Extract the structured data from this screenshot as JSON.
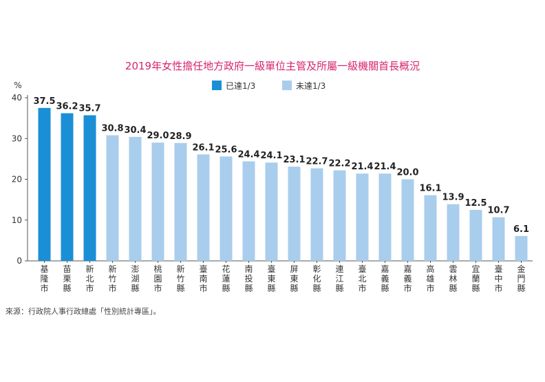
{
  "chart_data": {
    "type": "bar",
    "title": "2019年女性擔任地方政府一級單位主管及所屬一級機關首長概況",
    "ylabel": "%",
    "ylim": [
      0,
      40
    ],
    "yticks": [
      0,
      10,
      20,
      30,
      40
    ],
    "grid": false,
    "legend_position": "top-center",
    "categories": [
      "基隆市",
      "苗栗縣",
      "新北市",
      "新竹市",
      "澎湖縣",
      "桃園市",
      "新竹縣",
      "臺南市",
      "花蓮縣",
      "南投縣",
      "臺東縣",
      "屏東縣",
      "彰化縣",
      "連江縣",
      "臺北市",
      "嘉義縣",
      "嘉義市",
      "高雄市",
      "雲林縣",
      "宜蘭縣",
      "臺中市",
      "金門縣"
    ],
    "values": [
      37.5,
      36.2,
      35.7,
      30.8,
      30.4,
      29.0,
      28.9,
      26.1,
      25.6,
      24.4,
      24.1,
      23.1,
      22.7,
      22.2,
      21.4,
      21.4,
      20.0,
      16.1,
      13.9,
      12.5,
      10.7,
      6.1
    ],
    "value_labels": [
      "37.5",
      "36.2",
      "35.7",
      "30.8",
      "30.4",
      "29.0",
      "28.9",
      "26.1",
      "25.6",
      "24.4",
      "24.1",
      "23.1",
      "22.7",
      "22.2",
      "21.4",
      "21.4",
      "20.0",
      "16.1",
      "13.9",
      "12.5",
      "10.7",
      "6.1"
    ],
    "groups": [
      "reached",
      "reached",
      "reached",
      "not",
      "not",
      "not",
      "not",
      "not",
      "not",
      "not",
      "not",
      "not",
      "not",
      "not",
      "not",
      "not",
      "not",
      "not",
      "not",
      "not",
      "not",
      "not"
    ],
    "legend": [
      {
        "key": "reached",
        "label": "已達1/3",
        "color": "#1a8fd6"
      },
      {
        "key": "not",
        "label": "未達1/3",
        "color": "#a9cdec"
      }
    ]
  },
  "source": "來源：行政院人事行政總處「性別統計專區」。"
}
